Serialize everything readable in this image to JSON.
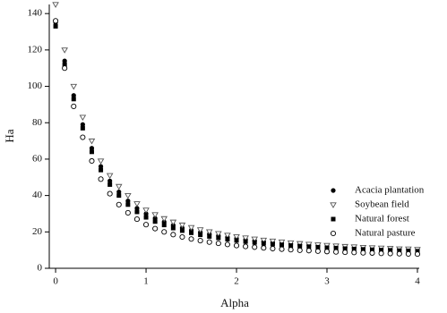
{
  "chart_data": {
    "type": "scatter",
    "xlabel": "Alpha",
    "ylabel": "Ha",
    "x": [
      0,
      0.1,
      0.2,
      0.3,
      0.4,
      0.5,
      0.6,
      0.7,
      0.8,
      0.9,
      1,
      1.1,
      1.2,
      1.3,
      1.4,
      1.5,
      1.6,
      1.7,
      1.8,
      1.9,
      2,
      2.1,
      2.2,
      2.3,
      2.4,
      2.5,
      2.6,
      2.7,
      2.8,
      2.9,
      3,
      3.1,
      3.2,
      3.3,
      3.4,
      3.5,
      3.6,
      3.7,
      3.8,
      3.9,
      4
    ],
    "series": [
      {
        "name": "Acacia plantation",
        "color": "#000000",
        "marker": "filled-circle",
        "values": [
          135,
          114,
          95,
          79,
          66,
          56,
          48,
          42,
          37,
          33,
          30,
          27.5,
          25.5,
          23.7,
          22.2,
          20.9,
          19.8,
          18.8,
          17.9,
          17.1,
          16.4,
          15.8,
          15.2,
          14.7,
          14.2,
          13.8,
          13.4,
          13,
          12.7,
          12.4,
          12.1,
          11.8,
          11.6,
          11.3,
          11.1,
          10.9,
          10.7,
          10.5,
          10.4,
          10.2,
          10.1
        ]
      },
      {
        "name": "Soybean field",
        "color": "#555555",
        "marker": "open-triangle-down",
        "values": [
          145,
          120,
          100,
          83,
          70,
          59,
          51,
          45,
          40,
          35.5,
          32,
          29.5,
          27.3,
          25.4,
          23.8,
          22.4,
          21.2,
          20.1,
          19.1,
          18.2,
          17.4,
          16.7,
          16.1,
          15.5,
          15,
          14.5,
          14,
          13.6,
          13.2,
          12.9,
          12.6,
          12.3,
          12,
          11.8,
          11.5,
          11.3,
          11.1,
          10.9,
          10.7,
          10.6,
          10.4
        ]
      },
      {
        "name": "Natural forest",
        "color": "#000000",
        "marker": "filled-square",
        "values": [
          133,
          112,
          93,
          77,
          64,
          54,
          46,
          40,
          35,
          31,
          28,
          25.7,
          23.8,
          22.1,
          20.7,
          19.5,
          18.4,
          17.5,
          16.7,
          16,
          15.3,
          14.7,
          14.2,
          13.7,
          13.3,
          12.9,
          12.5,
          12.2,
          11.9,
          11.6,
          11.3,
          11.1,
          10.8,
          10.6,
          10.4,
          10.2,
          10,
          9.9,
          9.7,
          9.6,
          9.4
        ]
      },
      {
        "name": "Natural pasture",
        "color": "#000000",
        "marker": "open-circle",
        "values": [
          136,
          110,
          89,
          72,
          59,
          49,
          41,
          35,
          30.5,
          27,
          24,
          21.8,
          20,
          18.5,
          17.2,
          16.1,
          15.2,
          14.4,
          13.7,
          13.1,
          12.5,
          12,
          11.6,
          11.2,
          10.8,
          10.5,
          10.2,
          9.9,
          9.7,
          9.4,
          9.2,
          9,
          8.8,
          8.7,
          8.5,
          8.4,
          8.2,
          8.1,
          8,
          7.9,
          7.8
        ]
      }
    ],
    "xlim": [
      -0.07,
      4.02
    ],
    "xticks": [
      0,
      1,
      2,
      3,
      4
    ],
    "ylim": [
      0,
      145
    ],
    "yticks": [
      0,
      20,
      40,
      60,
      80,
      100,
      120,
      140
    ],
    "legend": "right"
  }
}
